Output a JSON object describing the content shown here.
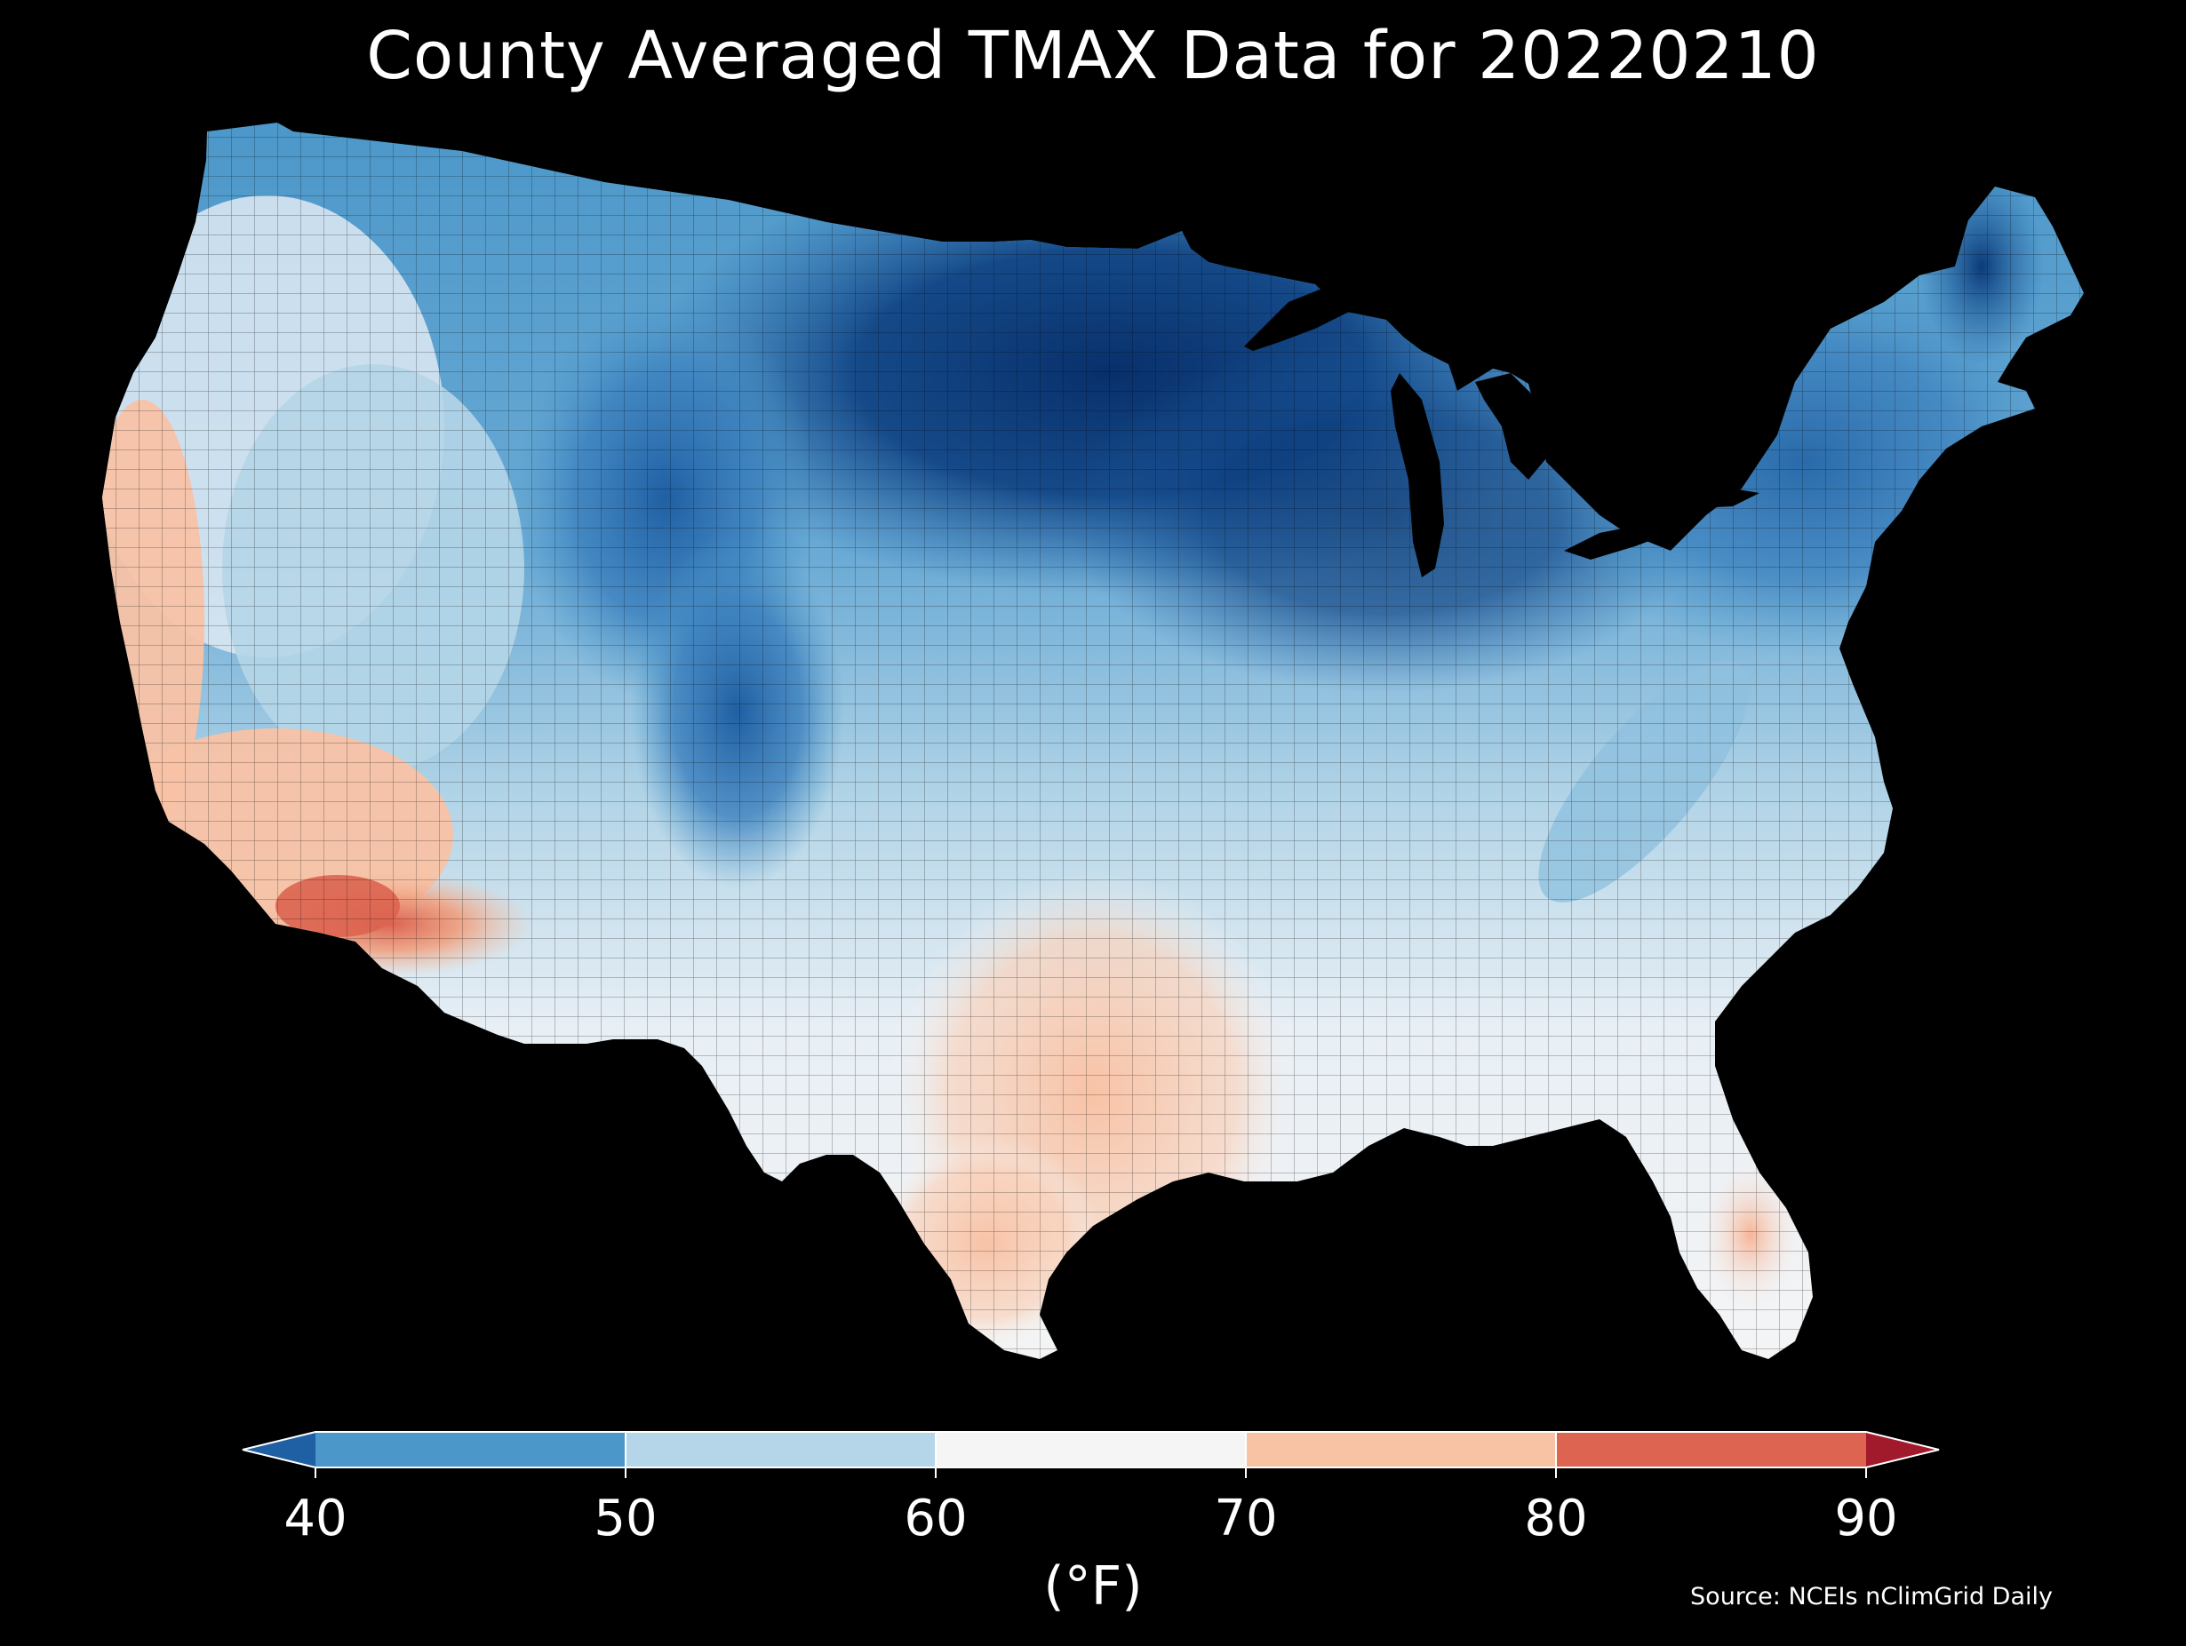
{
  "title": "County Averaged TMAX Data for 20220210",
  "colorbar": {
    "unit_label": "(°F)",
    "ticks": [
      "40",
      "50",
      "60",
      "70",
      "80",
      "90"
    ],
    "tick_values": [
      40,
      50,
      60,
      70,
      80,
      90
    ],
    "bins": [
      {
        "from": null,
        "to": 40,
        "color": "#1f5fa3"
      },
      {
        "from": 40,
        "to": 50,
        "color": "#4b97c9"
      },
      {
        "from": 50,
        "to": 60,
        "color": "#b5d6e8"
      },
      {
        "from": 60,
        "to": 70,
        "color": "#f5f5f5"
      },
      {
        "from": 70,
        "to": 80,
        "color": "#f8c2a5"
      },
      {
        "from": 80,
        "to": 90,
        "color": "#dc6450"
      },
      {
        "from": 90,
        "to": null,
        "color": "#a11a2b"
      }
    ]
  },
  "source": "Source: NCEIs nClimGrid Daily",
  "map": {
    "region": "Contiguous United States",
    "background": "#000000",
    "border_color": "#000000",
    "palette": {
      "deep_blue": "#08306b",
      "dark_blue": "#1f5fa3",
      "mid_blue": "#3a7fbd",
      "blue": "#4b97c9",
      "light_blue": "#8ec1df",
      "pale_blue": "#b5d6e8",
      "ice": "#dde9f2",
      "white": "#f5f5f5",
      "peach": "#f8c2a5",
      "salmon": "#f0a080",
      "red": "#dc6450"
    }
  }
}
